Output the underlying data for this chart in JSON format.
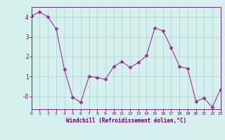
{
  "x": [
    0,
    1,
    2,
    3,
    4,
    5,
    6,
    7,
    8,
    9,
    10,
    11,
    12,
    13,
    14,
    15,
    16,
    17,
    18,
    19,
    20,
    21,
    22,
    23
  ],
  "y": [
    4.05,
    4.25,
    4.0,
    3.4,
    1.35,
    -0.05,
    -0.3,
    1.0,
    0.95,
    0.85,
    1.5,
    1.75,
    1.45,
    1.7,
    2.05,
    3.45,
    3.3,
    2.45,
    1.5,
    1.4,
    -0.25,
    -0.1,
    -0.55,
    0.35
  ],
  "xlabel": "Windchill (Refroidissement éolien,°C)",
  "xlim": [
    0,
    23
  ],
  "ylim": [
    -0.65,
    4.5
  ],
  "yticks": [
    4,
    3,
    2,
    1,
    0
  ],
  "ytick_labels": [
    "4",
    "3",
    "2",
    "1",
    "-0"
  ],
  "xticks": [
    0,
    1,
    2,
    3,
    4,
    5,
    6,
    7,
    8,
    9,
    10,
    11,
    12,
    13,
    14,
    15,
    16,
    17,
    18,
    19,
    20,
    21,
    22,
    23
  ],
  "line_color": "#993399",
  "marker": "D",
  "marker_size": 2.5,
  "bg_color": "#d6f0f0",
  "grid_color": "#b0d8d0",
  "font_color": "#660066",
  "axis_color": "#660066"
}
